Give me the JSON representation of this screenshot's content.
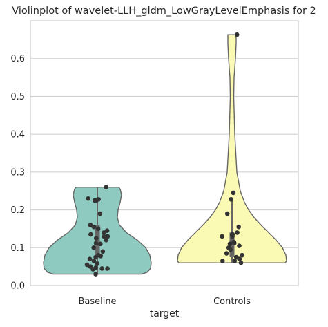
{
  "chart_data": {
    "type": "violin",
    "title": "Violinplot of wavelet-LLH_gldm_LowGrayLevelEmphasis for 2",
    "xlabel": "target",
    "ylabel": "",
    "ylim": [
      0.0,
      0.7
    ],
    "yticks": [
      "0.0",
      "0.1",
      "0.2",
      "0.3",
      "0.4",
      "0.5",
      "0.6"
    ],
    "ytick_values": [
      0.0,
      0.1,
      0.2,
      0.3,
      0.4,
      0.5,
      0.6
    ],
    "categories": [
      "Baseline",
      "Controls"
    ],
    "grid": "horizontal",
    "colors": {
      "Baseline": "#8ecac0",
      "Controls": "#fafab5",
      "points": "#333333",
      "outline": "#666666"
    },
    "series": [
      {
        "name": "Baseline",
        "min": 0.03,
        "max": 0.26,
        "q1": 0.08,
        "median": 0.125,
        "q3": 0.16,
        "points": [
          0.26,
          0.23,
          0.228,
          0.225,
          0.225,
          0.19,
          0.16,
          0.155,
          0.15,
          0.145,
          0.14,
          0.135,
          0.13,
          0.13,
          0.125,
          0.12,
          0.112,
          0.11,
          0.1,
          0.09,
          0.08,
          0.078,
          0.075,
          0.07,
          0.065,
          0.058,
          0.055,
          0.05,
          0.047,
          0.045,
          0.045,
          0.043,
          0.03
        ]
      },
      {
        "name": "Controls",
        "min": 0.06,
        "max": 0.663,
        "q1": 0.075,
        "median": 0.13,
        "q3": 0.14,
        "points": [
          0.663,
          0.245,
          0.228,
          0.19,
          0.155,
          0.14,
          0.135,
          0.135,
          0.13,
          0.13,
          0.115,
          0.112,
          0.11,
          0.105,
          0.1,
          0.095,
          0.085,
          0.08,
          0.075,
          0.07,
          0.07,
          0.065,
          0.065,
          0.06
        ]
      }
    ]
  }
}
